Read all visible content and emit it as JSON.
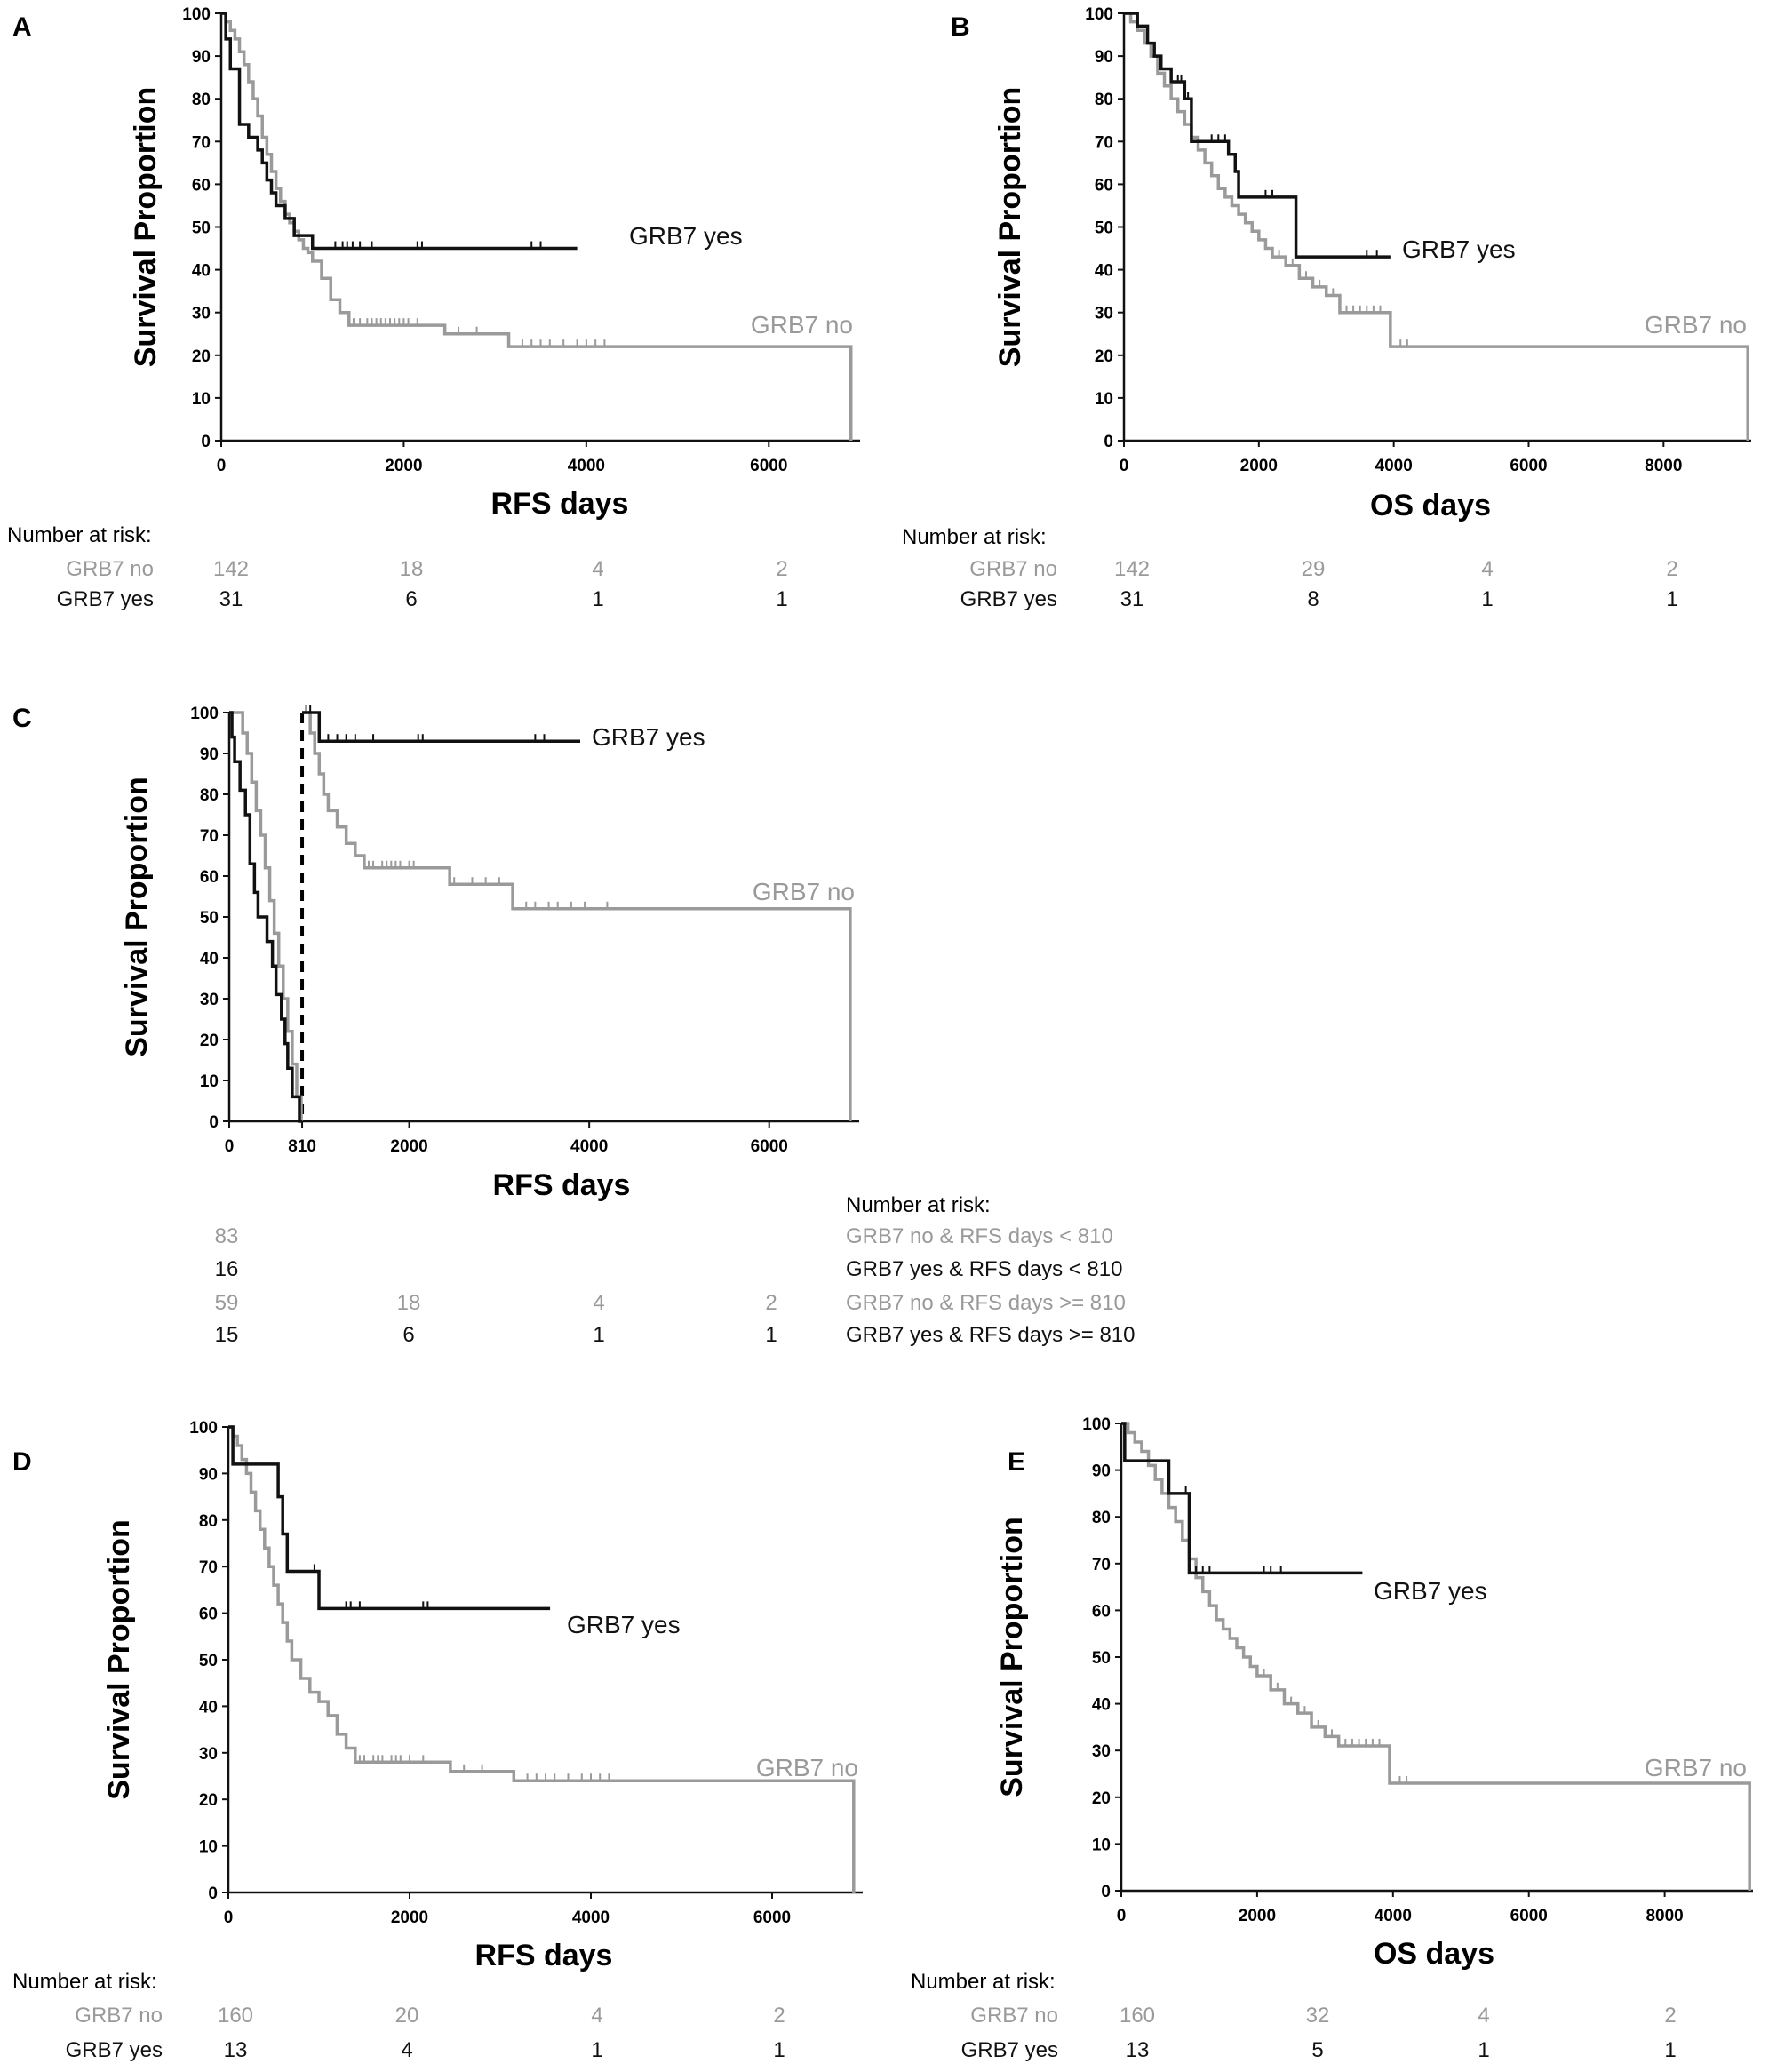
{
  "colors": {
    "grb7_yes": "#111111",
    "grb7_no": "#9a9a9a",
    "axis": "#111111"
  },
  "chart_data": [
    {
      "panel": "A",
      "type": "line",
      "step": true,
      "xlabel": "RFS days",
      "ylabel": "Survival Proportion",
      "xlim": [
        0,
        7000
      ],
      "ylim": [
        0,
        100
      ],
      "xticks": [
        "0",
        "2000",
        "4000",
        "6000"
      ],
      "yticks": [
        "0",
        "10",
        "20",
        "30",
        "40",
        "50",
        "60",
        "70",
        "80",
        "90",
        "100"
      ],
      "series": [
        {
          "name": "GRB7 yes",
          "color": "grb7_yes",
          "x": [
            0,
            50,
            100,
            200,
            300,
            400,
            450,
            500,
            550,
            600,
            700,
            800,
            1000,
            3900
          ],
          "y": [
            100,
            94,
            87,
            74,
            71,
            68,
            65,
            61,
            58,
            55,
            52,
            48,
            45,
            45
          ],
          "censor_x": [
            1250,
            1330,
            1380,
            1440,
            1520,
            1650,
            2150,
            2200,
            3400,
            3500
          ]
        },
        {
          "name": "GRB7 no",
          "color": "grb7_no",
          "x": [
            0,
            50,
            100,
            150,
            200,
            250,
            300,
            350,
            400,
            450,
            500,
            550,
            600,
            650,
            700,
            750,
            800,
            850,
            900,
            950,
            1000,
            1100,
            1200,
            1300,
            1400,
            2450,
            3150,
            6900,
            6900
          ],
          "y": [
            100,
            98,
            96,
            94,
            91,
            88,
            84,
            80,
            76,
            71,
            67,
            63,
            59,
            56,
            53,
            51,
            49,
            47,
            45,
            44,
            42,
            38,
            33,
            30,
            27,
            25,
            22,
            22,
            0
          ],
          "censor_x": [
            1450,
            1520,
            1600,
            1650,
            1700,
            1750,
            1800,
            1850,
            1900,
            1950,
            2000,
            2050,
            2150,
            2450,
            2600,
            2800,
            3300,
            3400,
            3500,
            3600,
            3750,
            3900,
            4000,
            4100,
            4200
          ]
        }
      ],
      "risk_table": {
        "title": "Number at risk:",
        "rows": [
          {
            "label": "GRB7 no",
            "color": "grb7_no",
            "values": [
              "142",
              "18",
              "4",
              "2"
            ]
          },
          {
            "label": "GRB7 yes",
            "color": "grb7_yes",
            "values": [
              "31",
              "6",
              "1",
              "1"
            ]
          }
        ]
      }
    },
    {
      "panel": "B",
      "type": "line",
      "step": true,
      "xlabel": "OS days",
      "ylabel": "Survival Proportion",
      "xlim": [
        0,
        9300
      ],
      "ylim": [
        0,
        100
      ],
      "xticks": [
        "0",
        "2000",
        "4000",
        "6000",
        "8000"
      ],
      "yticks": [
        "0",
        "10",
        "20",
        "30",
        "40",
        "50",
        "60",
        "70",
        "80",
        "90",
        "100"
      ],
      "series": [
        {
          "name": "GRB7 yes",
          "color": "grb7_yes",
          "x": [
            0,
            200,
            350,
            450,
            550,
            700,
            900,
            1000,
            1550,
            1650,
            1700,
            2550,
            3950
          ],
          "y": [
            100,
            97,
            93,
            90,
            87,
            84,
            80,
            70,
            67,
            63,
            57,
            43,
            43
          ],
          "censor_x": [
            800,
            850,
            950,
            1300,
            1400,
            1500,
            2100,
            2200,
            3600,
            3750
          ]
        },
        {
          "name": "GRB7 no",
          "color": "grb7_no",
          "x": [
            0,
            100,
            200,
            300,
            400,
            500,
            600,
            700,
            800,
            900,
            1000,
            1100,
            1200,
            1300,
            1400,
            1500,
            1600,
            1700,
            1800,
            1900,
            2000,
            2100,
            2200,
            2400,
            2600,
            2800,
            3000,
            3200,
            3950,
            9250,
            9250
          ],
          "y": [
            100,
            98,
            96,
            93,
            90,
            86,
            83,
            80,
            77,
            74,
            71,
            68,
            65,
            62,
            59,
            57,
            55,
            53,
            51,
            49,
            47,
            45,
            43,
            41,
            38,
            36,
            34,
            30,
            22,
            22,
            0
          ],
          "censor_x": [
            1500,
            1600,
            1700,
            1800,
            2000,
            2100,
            2300,
            2500,
            2700,
            2900,
            3100,
            3300,
            3400,
            3500,
            3600,
            3700,
            3800,
            4100,
            4200
          ]
        }
      ],
      "risk_table": {
        "title": "Number at risk:",
        "rows": [
          {
            "label": "GRB7 no",
            "color": "grb7_no",
            "values": [
              "142",
              "29",
              "4",
              "2"
            ]
          },
          {
            "label": "GRB7 yes",
            "color": "grb7_yes",
            "values": [
              "31",
              "8",
              "1",
              "1"
            ]
          }
        ]
      }
    },
    {
      "panel": "C",
      "type": "line",
      "step": true,
      "xlabel": "RFS days",
      "ylabel": "Survival Proportion",
      "xlim": [
        0,
        7000
      ],
      "ylim": [
        0,
        100
      ],
      "xticks": [
        "0",
        "810",
        "2000",
        "4000",
        "6000"
      ],
      "xtick_values": [
        0,
        810,
        2000,
        4000,
        6000
      ],
      "yticks": [
        "0",
        "10",
        "20",
        "30",
        "40",
        "50",
        "60",
        "70",
        "80",
        "90",
        "100"
      ],
      "cutoff_x": 810,
      "series": [
        {
          "name": "",
          "color": "grb7_yes",
          "x": [
            0,
            30,
            60,
            120,
            180,
            230,
            280,
            320,
            420,
            480,
            520,
            580,
            620,
            650,
            700,
            780,
            810
          ],
          "y": [
            100,
            94,
            88,
            81,
            75,
            63,
            56,
            50,
            44,
            38,
            31,
            25,
            19,
            13,
            6,
            0,
            0
          ],
          "censor_x": []
        },
        {
          "name": "",
          "color": "grb7_no",
          "x": [
            0,
            150,
            200,
            250,
            300,
            350,
            400,
            450,
            500,
            550,
            600,
            650,
            700,
            750,
            800
          ],
          "y": [
            100,
            95,
            90,
            83,
            76,
            70,
            62,
            54,
            46,
            38,
            30,
            22,
            14,
            6,
            0
          ],
          "censor_x": []
        },
        {
          "name": "GRB7 yes",
          "color": "grb7_yes",
          "x": [
            810,
            1000,
            3900
          ],
          "y": [
            100,
            93,
            93
          ],
          "censor_x": [
            900,
            1100,
            1200,
            1300,
            1400,
            1600,
            2100,
            2150,
            3400,
            3500
          ]
        },
        {
          "name": "GRB7 no",
          "color": "grb7_no",
          "x": [
            810,
            900,
            950,
            1000,
            1050,
            1100,
            1200,
            1300,
            1400,
            1500,
            2450,
            3150,
            6900,
            6900
          ],
          "y": [
            100,
            95,
            90,
            85,
            80,
            76,
            72,
            68,
            65,
            62,
            58,
            52,
            52,
            0
          ],
          "censor_x": [
            850,
            900,
            1550,
            1600,
            1700,
            1750,
            1800,
            1850,
            1900,
            2000,
            2050,
            2500,
            2700,
            2850,
            3000,
            3300,
            3400,
            3550,
            3650,
            3800,
            3950,
            4200
          ]
        }
      ],
      "risk_table": {
        "title": "Number at risk:",
        "rows": [
          {
            "label": "GRB7 no & RFS days < 810",
            "color": "grb7_no",
            "values": [
              "83",
              "",
              "",
              ""
            ]
          },
          {
            "label": "GRB7 yes & RFS days < 810",
            "color": "grb7_yes",
            "values": [
              "16",
              "",
              "",
              ""
            ]
          },
          {
            "label": "GRB7 no & RFS days >= 810",
            "color": "grb7_no",
            "values": [
              "59",
              "18",
              "4",
              "2"
            ]
          },
          {
            "label": "GRB7 yes & RFS days >= 810",
            "color": "grb7_yes",
            "values": [
              "15",
              "6",
              "1",
              "1"
            ]
          }
        ]
      }
    },
    {
      "panel": "D",
      "type": "line",
      "step": true,
      "xlabel": "RFS days",
      "ylabel": "Survival Proportion",
      "xlim": [
        0,
        7000
      ],
      "ylim": [
        0,
        100
      ],
      "xticks": [
        "0",
        "2000",
        "4000",
        "6000"
      ],
      "yticks": [
        "0",
        "10",
        "20",
        "30",
        "40",
        "50",
        "60",
        "70",
        "80",
        "90",
        "100"
      ],
      "series": [
        {
          "name": "GRB7 yes",
          "color": "grb7_yes",
          "x": [
            0,
            50,
            550,
            600,
            650,
            1000,
            3550
          ],
          "y": [
            100,
            92,
            85,
            77,
            69,
            61,
            61
          ],
          "censor_x": [
            950,
            1300,
            1350,
            1450,
            2150,
            2200
          ]
        },
        {
          "name": "GRB7 no",
          "color": "grb7_no",
          "x": [
            0,
            50,
            100,
            150,
            200,
            250,
            300,
            350,
            400,
            450,
            500,
            550,
            600,
            650,
            700,
            800,
            900,
            1000,
            1100,
            1200,
            1300,
            1400,
            2450,
            3150,
            6900,
            6900
          ],
          "y": [
            100,
            98,
            96,
            93,
            90,
            86,
            82,
            78,
            74,
            70,
            66,
            62,
            58,
            54,
            50,
            46,
            43,
            41,
            38,
            34,
            31,
            28,
            26,
            24,
            24,
            0
          ],
          "censor_x": [
            1450,
            1500,
            1600,
            1650,
            1700,
            1800,
            1850,
            1900,
            2000,
            2150,
            2450,
            2600,
            2800,
            3300,
            3400,
            3500,
            3600,
            3750,
            3900,
            4000,
            4100,
            4200
          ]
        }
      ],
      "risk_table": {
        "title": "Number at risk:",
        "rows": [
          {
            "label": "GRB7 no",
            "color": "grb7_no",
            "values": [
              "160",
              "20",
              "4",
              "2"
            ]
          },
          {
            "label": "GRB7 yes",
            "color": "grb7_yes",
            "values": [
              "13",
              "4",
              "1",
              "1"
            ]
          }
        ]
      }
    },
    {
      "panel": "E",
      "type": "line",
      "step": true,
      "xlabel": "OS days",
      "ylabel": "Survival Proportion",
      "xlim": [
        0,
        9300
      ],
      "ylim": [
        0,
        100
      ],
      "xticks": [
        "0",
        "2000",
        "4000",
        "6000",
        "8000"
      ],
      "yticks": [
        "0",
        "10",
        "20",
        "30",
        "40",
        "50",
        "60",
        "70",
        "80",
        "90",
        "100"
      ],
      "series": [
        {
          "name": "GRB7 yes",
          "color": "grb7_yes",
          "x": [
            0,
            50,
            700,
            1000,
            3550
          ],
          "y": [
            100,
            92,
            85,
            68,
            68
          ],
          "censor_x": [
            950,
            1100,
            1200,
            1300,
            2100,
            2200,
            2350
          ]
        },
        {
          "name": "GRB7 no",
          "color": "grb7_no",
          "x": [
            0,
            100,
            200,
            300,
            400,
            500,
            600,
            700,
            800,
            900,
            1000,
            1100,
            1200,
            1300,
            1400,
            1500,
            1600,
            1700,
            1800,
            1900,
            2000,
            2200,
            2400,
            2600,
            2800,
            3000,
            3200,
            3950,
            9250,
            9250
          ],
          "y": [
            100,
            98,
            96,
            94,
            91,
            88,
            85,
            82,
            79,
            75,
            71,
            67,
            64,
            61,
            58,
            56,
            54,
            52,
            50,
            48,
            46,
            43,
            40,
            38,
            35,
            33,
            31,
            23,
            23,
            0
          ],
          "censor_x": [
            1300,
            1400,
            1500,
            1600,
            1700,
            1800,
            2000,
            2100,
            2300,
            2500,
            2700,
            2900,
            3100,
            3300,
            3400,
            3500,
            3600,
            3700,
            3800,
            4100,
            4200
          ]
        }
      ],
      "risk_table": {
        "title": "Number at risk:",
        "rows": [
          {
            "label": "GRB7 no",
            "color": "grb7_no",
            "values": [
              "160",
              "32",
              "4",
              "2"
            ]
          },
          {
            "label": "GRB7 yes",
            "color": "grb7_yes",
            "values": [
              "13",
              "5",
              "1",
              "1"
            ]
          }
        ]
      }
    }
  ]
}
